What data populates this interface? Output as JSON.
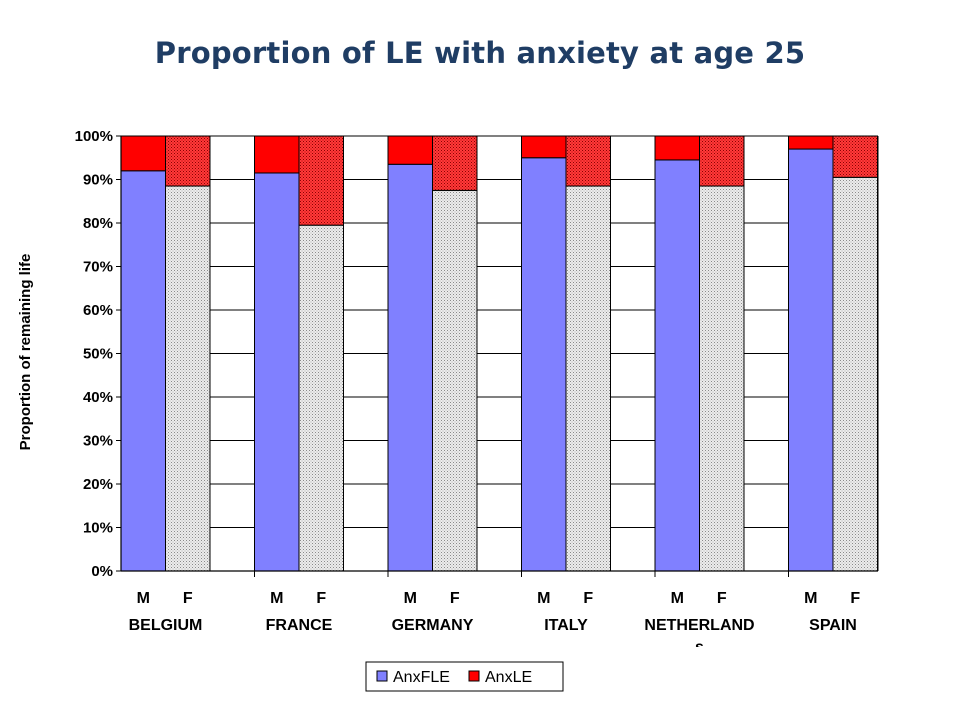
{
  "title": "Proportion of LE with  anxiety at age 25",
  "chart_data": {
    "type": "bar",
    "stacked": true,
    "ylabel": "Proportion of remaining life",
    "xlabel": "",
    "ylim": [
      0,
      100
    ],
    "ytick_labels": [
      "0%",
      "10%",
      "20%",
      "30%",
      "40%",
      "50%",
      "60%",
      "70%",
      "80%",
      "90%",
      "100%"
    ],
    "groups": [
      "BELGIUM",
      "FRANCE",
      "GERMANY",
      "ITALY",
      "NETHERLAND",
      "SPAIN"
    ],
    "group_label_overflow": "s",
    "sub_categories": [
      "M",
      "F"
    ],
    "grid": true,
    "legend_position": "bottom",
    "series": [
      {
        "name": "AnxFLE",
        "color": "#8080ff",
        "f_pattern": "grey-dotted",
        "values": {
          "M": [
            92.0,
            91.5,
            93.5,
            95.0,
            94.5,
            97.0
          ],
          "F": [
            88.5,
            79.5,
            87.5,
            88.5,
            88.5,
            90.5
          ]
        }
      },
      {
        "name": "AnxLE",
        "color": "#ff0000",
        "f_pattern": "red-dotted",
        "values": {
          "M": [
            8.0,
            8.5,
            6.5,
            5.0,
            5.5,
            3.0
          ],
          "F": [
            11.5,
            20.5,
            12.5,
            11.5,
            11.5,
            9.5
          ]
        }
      }
    ]
  }
}
